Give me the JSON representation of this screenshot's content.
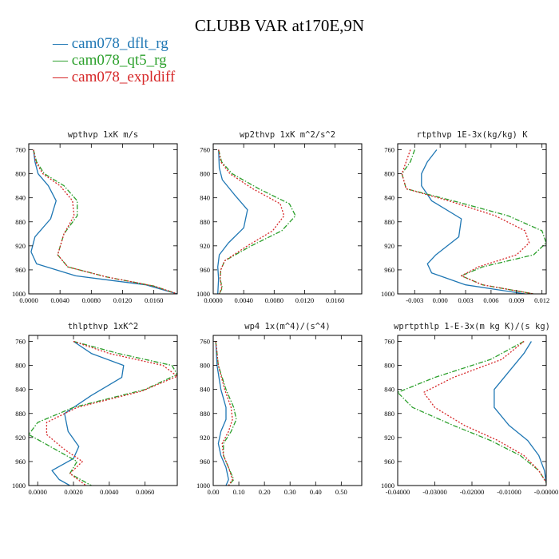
{
  "title": "CLUBB VAR at170E,9N",
  "legend": [
    {
      "label": "cam078_dflt_rg",
      "color": "#1f77b4",
      "dash": "solid"
    },
    {
      "label": "cam078_qt5_rg",
      "color": "#2ca02c",
      "dash": "dashdot"
    },
    {
      "label": "cam078_expldiff",
      "color": "#d62728",
      "dash": "dotted"
    }
  ],
  "chart_data": [
    {
      "type": "line",
      "title": "wpthvp  1xK m/s",
      "xlim": [
        0,
        0.019
      ],
      "ylim": [
        1000,
        750
      ],
      "xticks": [
        "0.0000",
        "0.0040",
        "0.0080",
        "0.0120",
        "0.0160"
      ],
      "xtick_values": [
        0,
        0.004,
        0.008,
        0.012,
        0.016
      ],
      "yticks": [
        760,
        800,
        840,
        880,
        920,
        960,
        1000
      ],
      "series": [
        {
          "name": "cam078_dflt_rg",
          "x": [
            0.0006,
            0.0008,
            0.0012,
            0.0025,
            0.0035,
            0.0028,
            0.0008,
            0.0003,
            0.001,
            0.006,
            0.015,
            0.019
          ],
          "y": [
            760,
            780,
            800,
            820,
            845,
            875,
            905,
            930,
            950,
            970,
            985,
            1000
          ]
        },
        {
          "name": "cam078_qt5_rg",
          "x": [
            0.0006,
            0.001,
            0.002,
            0.0045,
            0.0062,
            0.0062,
            0.0045,
            0.0037,
            0.005,
            0.01,
            0.016,
            0.019
          ],
          "y": [
            760,
            780,
            800,
            820,
            845,
            870,
            900,
            935,
            955,
            972,
            987,
            1000
          ]
        },
        {
          "name": "cam078_expldiff",
          "x": [
            0.0006,
            0.0009,
            0.0018,
            0.004,
            0.0056,
            0.0058,
            0.0045,
            0.0037,
            0.005,
            0.01,
            0.016,
            0.019
          ],
          "y": [
            760,
            780,
            800,
            820,
            845,
            870,
            900,
            935,
            955,
            972,
            987,
            1000
          ]
        }
      ]
    },
    {
      "type": "line",
      "title": "wp2thvp  1xK m^2/s^2",
      "xlim": [
        0,
        0.0195
      ],
      "ylim": [
        1000,
        750
      ],
      "xticks": [
        "0.0000",
        "0.0040",
        "0.0080",
        "0.0120",
        "0.0160"
      ],
      "xtick_values": [
        0,
        0.004,
        0.008,
        0.012,
        0.016
      ],
      "yticks": [
        760,
        800,
        840,
        880,
        920,
        960,
        1000
      ],
      "series": [
        {
          "name": "cam078_dflt_rg",
          "x": [
            0.0007,
            0.0008,
            0.0012,
            0.0028,
            0.0045,
            0.004,
            0.002,
            0.0008,
            0.0006,
            0.0007,
            0.0006
          ],
          "y": [
            760,
            790,
            810,
            835,
            860,
            890,
            915,
            935,
            955,
            975,
            1000
          ]
        },
        {
          "name": "cam078_qt5_rg",
          "x": [
            0.0007,
            0.0011,
            0.0025,
            0.006,
            0.01,
            0.0108,
            0.009,
            0.005,
            0.0015,
            0.001,
            0.0009,
            0.0012,
            0.0008
          ],
          "y": [
            760,
            780,
            800,
            825,
            850,
            870,
            895,
            920,
            945,
            960,
            975,
            990,
            1000
          ]
        },
        {
          "name": "cam078_expldiff",
          "x": [
            0.0007,
            0.001,
            0.0022,
            0.0052,
            0.0088,
            0.0093,
            0.0078,
            0.0045,
            0.0015,
            0.001,
            0.0009,
            0.0011,
            0.0008
          ],
          "y": [
            760,
            780,
            800,
            825,
            850,
            870,
            895,
            920,
            945,
            960,
            975,
            990,
            1000
          ]
        }
      ]
    },
    {
      "type": "line",
      "title": "rtpthvp  1E-3x(kg/kg) K",
      "xlim": [
        -0.005,
        0.0125
      ],
      "ylim": [
        1000,
        750
      ],
      "xticks": [
        "-0.003",
        "0.000",
        "0.003",
        "0.006",
        "0.009",
        "0.012"
      ],
      "xtick_values": [
        -0.003,
        0,
        0.003,
        0.006,
        0.009,
        0.012
      ],
      "yticks": [
        760,
        800,
        840,
        880,
        920,
        960,
        1000
      ],
      "series": [
        {
          "name": "cam078_dflt_rg",
          "x": [
            -0.0004,
            -0.0015,
            -0.0022,
            -0.0022,
            -0.001,
            0.0025,
            0.0022,
            -0.0005,
            -0.0015,
            -0.001,
            0.003,
            0.01
          ],
          "y": [
            760,
            780,
            800,
            820,
            845,
            875,
            905,
            935,
            950,
            965,
            985,
            1000
          ]
        },
        {
          "name": "cam078_qt5_rg",
          "x": [
            -0.003,
            -0.0035,
            -0.0045,
            -0.004,
            0.0015,
            0.008,
            0.012,
            0.0125,
            0.011,
            0.005,
            0.0025,
            0.005,
            0.011
          ],
          "y": [
            760,
            780,
            800,
            825,
            845,
            870,
            895,
            915,
            935,
            955,
            970,
            985,
            1000
          ]
        },
        {
          "name": "cam078_expldiff",
          "x": [
            -0.0035,
            -0.004,
            -0.0045,
            -0.004,
            0.001,
            0.0065,
            0.01,
            0.0105,
            0.009,
            0.0045,
            0.0025,
            0.005,
            0.011
          ],
          "y": [
            760,
            780,
            800,
            825,
            845,
            870,
            895,
            915,
            935,
            955,
            970,
            985,
            1000
          ]
        }
      ]
    },
    {
      "type": "line",
      "title": "thlpthvp  1xK^2",
      "xlim": [
        -0.0005,
        0.0078
      ],
      "ylim": [
        1000,
        750
      ],
      "xticks": [
        "0.0000",
        "0.0020",
        "0.0040",
        "0.0060"
      ],
      "xtick_values": [
        0,
        0.002,
        0.004,
        0.006
      ],
      "yticks": [
        760,
        800,
        840,
        880,
        920,
        960,
        1000
      ],
      "series": [
        {
          "name": "cam078_dflt_rg",
          "x": [
            0.002,
            0.003,
            0.0048,
            0.0047,
            0.003,
            0.0015,
            0.0017,
            0.0023,
            0.002,
            0.0008,
            0.0012,
            0.0018
          ],
          "y": [
            760,
            780,
            800,
            820,
            850,
            880,
            910,
            935,
            955,
            975,
            990,
            1000
          ]
        },
        {
          "name": "cam078_qt5_rg",
          "x": [
            0.002,
            0.0045,
            0.0075,
            0.0078,
            0.006,
            0.002,
            0.0,
            -0.0005,
            0.001,
            0.0022,
            0.0018,
            0.003
          ],
          "y": [
            760,
            780,
            800,
            815,
            840,
            870,
            895,
            915,
            940,
            960,
            980,
            1000
          ]
        },
        {
          "name": "cam078_expldiff",
          "x": [
            0.002,
            0.004,
            0.007,
            0.0078,
            0.0058,
            0.0022,
            0.0005,
            0.0005,
            0.0015,
            0.0025,
            0.0018,
            0.0027
          ],
          "y": [
            760,
            780,
            800,
            818,
            843,
            870,
            895,
            915,
            940,
            960,
            980,
            1000
          ]
        }
      ]
    },
    {
      "type": "line",
      "title": "wp4  1x(m^4)/(s^4)",
      "xlim": [
        0,
        0.58
      ],
      "ylim": [
        1000,
        750
      ],
      "xticks": [
        "0.00",
        "0.10",
        "0.20",
        "0.30",
        "0.40",
        "0.50"
      ],
      "xtick_values": [
        0,
        0.1,
        0.2,
        0.3,
        0.4,
        0.5
      ],
      "yticks": [
        760,
        800,
        840,
        880,
        920,
        960,
        1000
      ],
      "series": [
        {
          "name": "cam078_dflt_rg",
          "x": [
            0.01,
            0.015,
            0.03,
            0.05,
            0.05,
            0.03,
            0.02,
            0.03,
            0.05,
            0.06,
            0.05
          ],
          "y": [
            760,
            800,
            840,
            870,
            890,
            910,
            930,
            950,
            970,
            990,
            1000
          ]
        },
        {
          "name": "cam078_qt5_rg",
          "x": [
            0.01,
            0.02,
            0.05,
            0.08,
            0.09,
            0.07,
            0.04,
            0.04,
            0.06,
            0.08,
            0.06
          ],
          "y": [
            760,
            800,
            840,
            870,
            890,
            910,
            930,
            950,
            970,
            990,
            1000
          ]
        },
        {
          "name": "cam078_expldiff",
          "x": [
            0.01,
            0.02,
            0.045,
            0.07,
            0.075,
            0.06,
            0.035,
            0.04,
            0.06,
            0.075,
            0.06
          ],
          "y": [
            760,
            800,
            840,
            870,
            890,
            910,
            930,
            950,
            970,
            990,
            1000
          ]
        }
      ]
    },
    {
      "type": "line",
      "title": "wprtpthlp  1-E-3x(m kg K)/(s kg)",
      "xlim": [
        -0.04,
        0
      ],
      "ylim": [
        1000,
        750
      ],
      "xticks": [
        "-0.04000",
        "-0.03000",
        "-0.02000",
        "-0.01000",
        "-0.00000"
      ],
      "xtick_values": [
        -0.04,
        -0.03,
        -0.02,
        -0.01,
        0
      ],
      "yticks": [
        760,
        800,
        840,
        880,
        920,
        960,
        1000
      ],
      "series": [
        {
          "name": "cam078_dflt_rg",
          "x": [
            -0.004,
            -0.006,
            -0.01,
            -0.014,
            -0.014,
            -0.01,
            -0.005,
            -0.002,
            -0.0005,
            0
          ],
          "y": [
            760,
            780,
            810,
            840,
            870,
            900,
            925,
            950,
            975,
            995
          ]
        },
        {
          "name": "cam078_qt5_rg",
          "x": [
            -0.006,
            -0.015,
            -0.03,
            -0.04,
            -0.036,
            -0.025,
            -0.015,
            -0.007,
            -0.002,
            0
          ],
          "y": [
            760,
            790,
            820,
            845,
            870,
            900,
            925,
            950,
            975,
            995
          ]
        },
        {
          "name": "cam078_expldiff",
          "x": [
            -0.006,
            -0.012,
            -0.025,
            -0.033,
            -0.03,
            -0.022,
            -0.013,
            -0.006,
            -0.002,
            0
          ],
          "y": [
            760,
            790,
            820,
            845,
            870,
            900,
            925,
            950,
            975,
            995
          ]
        }
      ]
    }
  ]
}
